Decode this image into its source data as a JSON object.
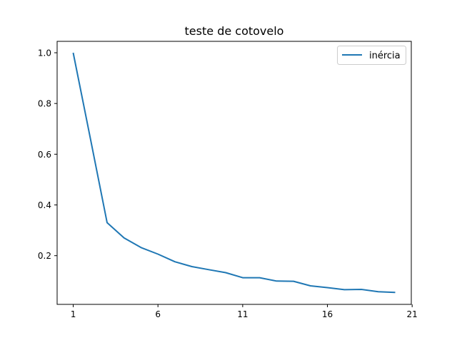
{
  "chart_data": {
    "type": "line",
    "title": "teste de cotovelo",
    "xlabel": "",
    "ylabel": "",
    "x": [
      1,
      2,
      3,
      4,
      5,
      6,
      7,
      8,
      9,
      10,
      11,
      12,
      13,
      14,
      15,
      16,
      17,
      18,
      19,
      20
    ],
    "series": [
      {
        "name": "inércia",
        "color": "#1f77b4",
        "values": [
          1.0,
          0.666,
          0.33,
          0.27,
          0.232,
          0.206,
          0.176,
          0.157,
          0.145,
          0.133,
          0.113,
          0.113,
          0.1,
          0.099,
          0.081,
          0.074,
          0.066,
          0.067,
          0.058,
          0.055
        ]
      }
    ],
    "xlim": [
      0.05,
      20.95
    ],
    "ylim": [
      0.008,
      1.045
    ],
    "xticks": [
      1,
      6,
      11,
      16,
      21
    ],
    "xtick_labels": [
      "1",
      "6",
      "11",
      "16",
      "21"
    ],
    "yticks": [
      0.2,
      0.4,
      0.6,
      0.8,
      1.0
    ],
    "ytick_labels": [
      "0.2",
      "0.4",
      "0.6",
      "0.8",
      "1.0"
    ],
    "grid": false,
    "legend_position": "top-right"
  }
}
